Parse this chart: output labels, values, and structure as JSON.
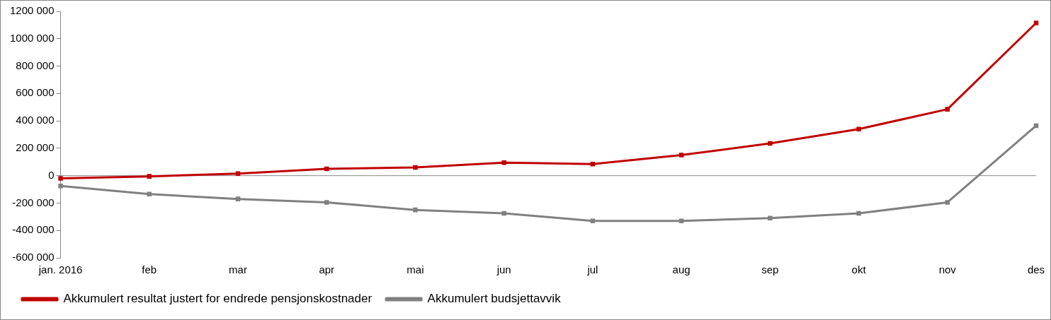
{
  "chart_data": {
    "type": "line",
    "categories": [
      "jan. 2016",
      "feb",
      "mar",
      "apr",
      "mai",
      "jun",
      "jul",
      "aug",
      "sep",
      "okt",
      "nov",
      "des"
    ],
    "series": [
      {
        "name": "Akkumulert resultat justert for endrede pensjonskostnader",
        "color": "#c00000",
        "values": [
          -20000,
          -5000,
          15000,
          50000,
          60000,
          95000,
          85000,
          150000,
          235000,
          340000,
          485000,
          1115000
        ]
      },
      {
        "name": "Akkumulert budsjettavvik",
        "color": "#808080",
        "values": [
          -75000,
          -135000,
          -170000,
          -195000,
          -250000,
          -275000,
          -330000,
          -330000,
          -310000,
          -275000,
          -195000,
          365000
        ]
      }
    ],
    "ylim": [
      -600000,
      1200000
    ],
    "yticks": [
      {
        "value": -600000,
        "label": "-600 000"
      },
      {
        "value": -400000,
        "label": "-400 000"
      },
      {
        "value": -200000,
        "label": "-200 000"
      },
      0,
      {
        "value": 200000,
        "label": "200 000"
      },
      {
        "value": 400000,
        "label": "400 000"
      },
      {
        "value": 600000,
        "label": "600 000"
      },
      {
        "value": 800000,
        "label": "800 000"
      },
      {
        "value": 1000000,
        "label": "1000 000"
      },
      {
        "value": 1200000,
        "label": "1200 000"
      }
    ],
    "ref_lines": [
      {
        "axis": "y",
        "value": 0,
        "color": "#888888"
      }
    ],
    "grid": false,
    "legend": "bottom",
    "marker": "square",
    "line_style": "solid"
  }
}
